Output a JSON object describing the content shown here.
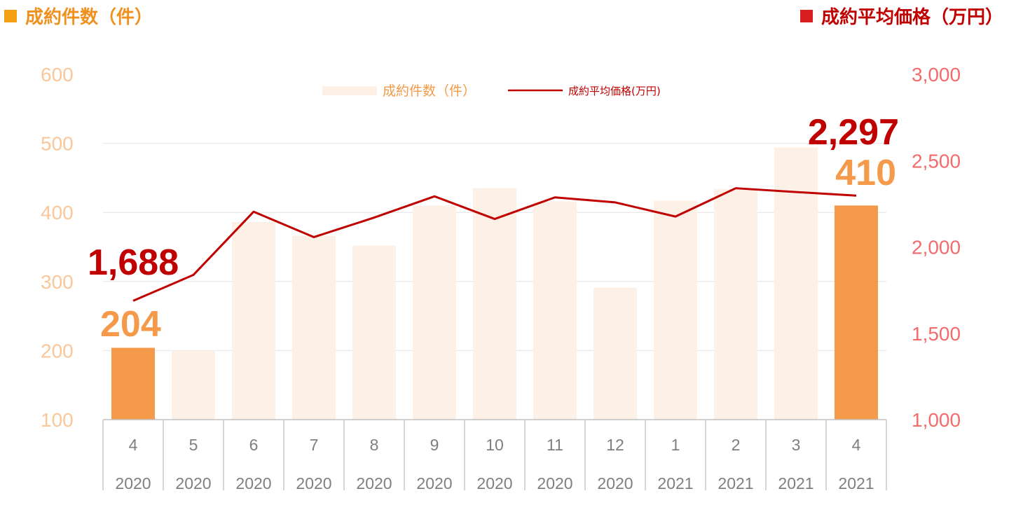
{
  "headers": {
    "left": "成約件数（件）",
    "right": "成約平均価格（万円）"
  },
  "colors": {
    "bar_faded": "#fdf0e6",
    "bar_highlight": "#f5994a",
    "line": "#c00000",
    "left_axis_text": "#f9c79a",
    "right_axis_text": "#f36b6b",
    "grid": "#e4e4e4",
    "label_orange": "#f5994a",
    "label_red": "#c00000"
  },
  "chart_data": {
    "type": "bar",
    "categories": [
      [
        "4",
        "2020"
      ],
      [
        "5",
        "2020"
      ],
      [
        "6",
        "2020"
      ],
      [
        "7",
        "2020"
      ],
      [
        "8",
        "2020"
      ],
      [
        "9",
        "2020"
      ],
      [
        "10",
        "2020"
      ],
      [
        "11",
        "2020"
      ],
      [
        "12",
        "2020"
      ],
      [
        "1",
        "2021"
      ],
      [
        "2",
        "2021"
      ],
      [
        "3",
        "2021"
      ],
      [
        "4",
        "2021"
      ]
    ],
    "series": [
      {
        "name": "成約件数（件）",
        "type": "bar",
        "axis": "left",
        "values": [
          204,
          200,
          386,
          366,
          352,
          410,
          435,
          416,
          291,
          417,
          434,
          494,
          410
        ],
        "highlight": [
          0,
          12
        ]
      },
      {
        "name": "成約平均価格(万円)",
        "type": "line",
        "axis": "right",
        "values": [
          1688,
          1838,
          2204,
          2057,
          2170,
          2293,
          2162,
          2287,
          2258,
          2176,
          2340,
          2318,
          2297
        ]
      }
    ],
    "y_left": {
      "min": 100,
      "max": 600,
      "ticks": [
        "100",
        "200",
        "300",
        "400",
        "500",
        "600"
      ]
    },
    "y_right": {
      "min": 1000,
      "max": 3000,
      "ticks": [
        "1,000",
        "1,500",
        "2,000",
        "2,500",
        "3,000"
      ]
    },
    "data_labels": [
      {
        "text": "1,688",
        "series": 1,
        "index": 0
      },
      {
        "text": "204",
        "series": 0,
        "index": 0
      },
      {
        "text": "2,297",
        "series": 1,
        "index": 12
      },
      {
        "text": "410",
        "series": 0,
        "index": 12
      }
    ],
    "grid": true,
    "legend": "top-center"
  }
}
